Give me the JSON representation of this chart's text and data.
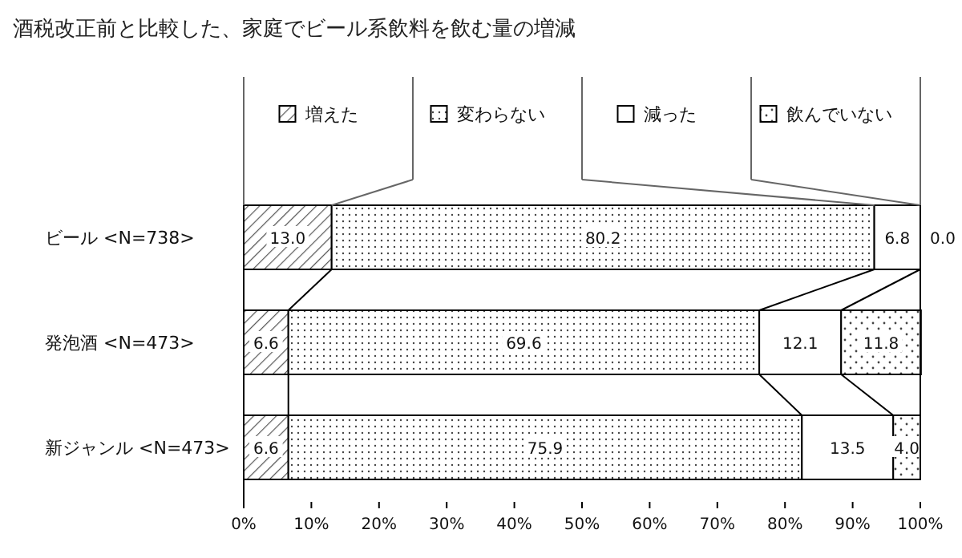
{
  "chart_data": {
    "type": "bar",
    "orientation": "horizontal",
    "stacked": true,
    "title": "酒税改正前と比較した、家庭でビール系飲料を飲む量の増減",
    "categories": [
      "ビール <N=738>",
      "発泡酒 <N=473>",
      "新ジャンル <N=473>"
    ],
    "series": [
      {
        "name": "増えた",
        "values": [
          13.0,
          6.6,
          6.6
        ],
        "value_labels": [
          "13.0",
          "6.6",
          "6.6"
        ]
      },
      {
        "name": "変わらない",
        "values": [
          80.2,
          69.6,
          75.9
        ],
        "value_labels": [
          "80.2",
          "69.6",
          "75.9"
        ]
      },
      {
        "name": "減った",
        "values": [
          6.8,
          12.1,
          13.5
        ],
        "value_labels": [
          "6.8",
          "12.1",
          "13.5"
        ]
      },
      {
        "name": "飲んでいない",
        "values": [
          0.0,
          11.8,
          4.0
        ],
        "value_labels": [
          "0.0",
          "11.8",
          "4.0"
        ]
      }
    ],
    "xlim": [
      0,
      100
    ],
    "xticks": [
      {
        "value": 0,
        "label": "0%"
      },
      {
        "value": 10,
        "label": "10%"
      },
      {
        "value": 20,
        "label": "20%"
      },
      {
        "value": 30,
        "label": "30%"
      },
      {
        "value": 40,
        "label": "40%"
      },
      {
        "value": 50,
        "label": "50%"
      },
      {
        "value": 60,
        "label": "60%"
      },
      {
        "value": 70,
        "label": "70%"
      },
      {
        "value": 80,
        "label": "80%"
      },
      {
        "value": 90,
        "label": "90%"
      },
      {
        "value": 100,
        "label": "100%"
      }
    ],
    "legend": "top",
    "grid": false
  }
}
